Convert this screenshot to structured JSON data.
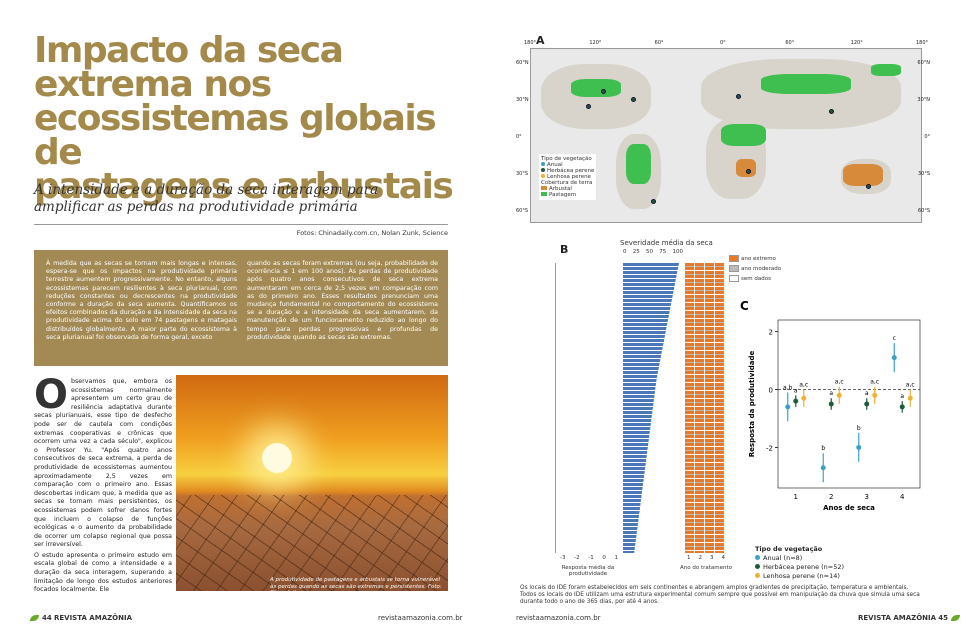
{
  "left_page": {
    "title_lines": [
      "Impacto da seca",
      "extrema nos",
      "ecossistemas globais de",
      "pastagens e arbustais"
    ],
    "subtitle_lines": [
      "A intensidade e a duração da seca interagem para",
      "amplificar as perdas na produtividade primária"
    ],
    "credits": "Fotos: Chinadaily.com.cn, Nolan Zunk, Science",
    "abstract": [
      "À medida que as secas se tornam mais longas e intensas, espera-se que os impactos na produtividade primária terrestre aumentem progressivamente. No entanto, alguns ecossistemas parecem resilientes à seca plurianual, com reduções constantes ou decrescentes na produtividade conforme a duração da seca aumenta. Quantificamos os efeitos combinados da duração e da intensidade da seca na produtividade acima do solo em 74 pastagens e matagais distribuídos globalmente. A maior parte do ecossistema à seca plurianual foi observada de forma geral, exceto",
      "quando as secas foram extremas (ou seja, probabilidade de ocorrência ≤ 1 em 100 anos). As perdas de produtividade após quatro anos consecutivos de seca extrema aumentaram em cerca de 2,5 vezes em comparação com as do primeiro ano. Esses resultados prenunciam uma mudança fundamental no comportamento do ecossistema se a duração e a intensidade da seca aumentarem, da manutenção de um funcionamento reduzido ao longo do tempo para perdas progressivas e profundas de produtividade quando as secas são extremas."
    ],
    "body": {
      "dropcap": "O",
      "paragraphs": [
        "bservamos que, embora os ecossistemas normalmente apresentem um certo grau de resiliência adaptativa durante secas plurianuais, esse tipo de desfecho pode ser de cautela com condições extremas cooperativas e crônicas que ocorrem uma vez a cada século\", explicou o Professor Yu. \"Após quatro anos consecutivos de seca extrema, a perda de produtividade de ecossistemas aumentou aproximadamente 2,5 vezes em comparação com o primeiro ano. Essas descobertas indicam que, à medida que as secas se tornam mais persistentes, os ecossistemas podem sofrer danos fortes que incluem o colapso de funções ecológicas e o aumento da probabilidade de ocorrer um colapso regional que possa ser irreversível.",
        "O estudo apresenta o primeiro estudo em escala global de como a intensidade e a duração da seca interagem, superando a limitação de longo dos estudos anteriores focados localmente. Ele"
      ]
    },
    "photo_caption": "A produtividade de pastagens e arbustais se torna vulnerável às perdas quando as secas são extremas e persistentes. Foto: Chinadaily.com.cn",
    "footer": {
      "page": "44",
      "magazine": "REVISTA AMAZÔNIA",
      "site": "revistaamazonia.com.br"
    }
  },
  "right_page": {
    "figure_a": {
      "label": "A",
      "lat_labels": [
        "60°N",
        "30°N",
        "0°",
        "30°S",
        "60°S"
      ],
      "lon_labels": [
        "180°",
        "120°",
        "60°",
        "0°",
        "60°",
        "120°",
        "180°"
      ],
      "legend_title": "Tipo de vegetação",
      "legend_items": [
        "Anual",
        "Herbácea perene",
        "Lenhosa perene"
      ],
      "cover_title": "Cobertura de terra",
      "cover_items": [
        "Arbustal",
        "Pastagem"
      ]
    },
    "figure_b": {
      "label": "B",
      "top_title": "Severidade média da seca",
      "top_ticks": [
        "0",
        "25",
        "50",
        "75",
        "100"
      ],
      "legend_items": [
        "ano extremo",
        "ano moderado",
        "sem dados"
      ],
      "x_title_left": "Resposta média da produtividade",
      "x_ticks_left": [
        "-3",
        "-2",
        "-1",
        "0",
        "1"
      ],
      "x_title_right": "Ano do tratamento",
      "x_ticks_right": [
        "1",
        "2",
        "3",
        "4"
      ]
    },
    "caption": "Os locais do IDE foram estabelecidos em seis continentes e abrangem amplos gradientes de precipitação, temperatura e ambientais. Todos os locais do IDE utilizam uma estrutura experimental comum sempre que possível em manipulação da chuva que simula uma seca durante todo o ano de 365 dias, por até 4 anos.",
    "footer": {
      "site": "revistaamazonia.com.br",
      "magazine": "REVISTA AMAZÔNIA",
      "page": "45"
    }
  },
  "chart_data": {
    "type": "dot",
    "label": "C",
    "x_label": "Anos de seca",
    "y_label": "Resposta da produtividade",
    "categories": [
      "1",
      "2",
      "3",
      "4"
    ],
    "ylim": [
      -3.4,
      2.4
    ],
    "yticks": [
      -2,
      0,
      2
    ],
    "legend_title": "Tipo de vegetação",
    "series": [
      {
        "name": "Anual (n=8)",
        "color": "#3aa0c8",
        "values": [
          -0.6,
          -2.7,
          -2.0,
          1.1
        ],
        "errors": [
          0.5,
          0.5,
          0.5,
          0.5
        ],
        "letters": [
          "a,b",
          "b",
          "b",
          "c"
        ]
      },
      {
        "name": "Herbácea perene (n=52)",
        "color": "#1f5a3a",
        "values": [
          -0.4,
          -0.5,
          -0.5,
          -0.6
        ],
        "errors": [
          0.2,
          0.2,
          0.2,
          0.2
        ],
        "letters": [
          "a",
          "a",
          "a",
          "a"
        ]
      },
      {
        "name": "Lenhosa perene (n=14)",
        "color": "#f0b030",
        "values": [
          -0.3,
          -0.2,
          -0.2,
          -0.3
        ],
        "errors": [
          0.3,
          0.3,
          0.3,
          0.3
        ],
        "letters": [
          "a,c",
          "a,c",
          "a,c",
          "a,c"
        ]
      }
    ]
  }
}
